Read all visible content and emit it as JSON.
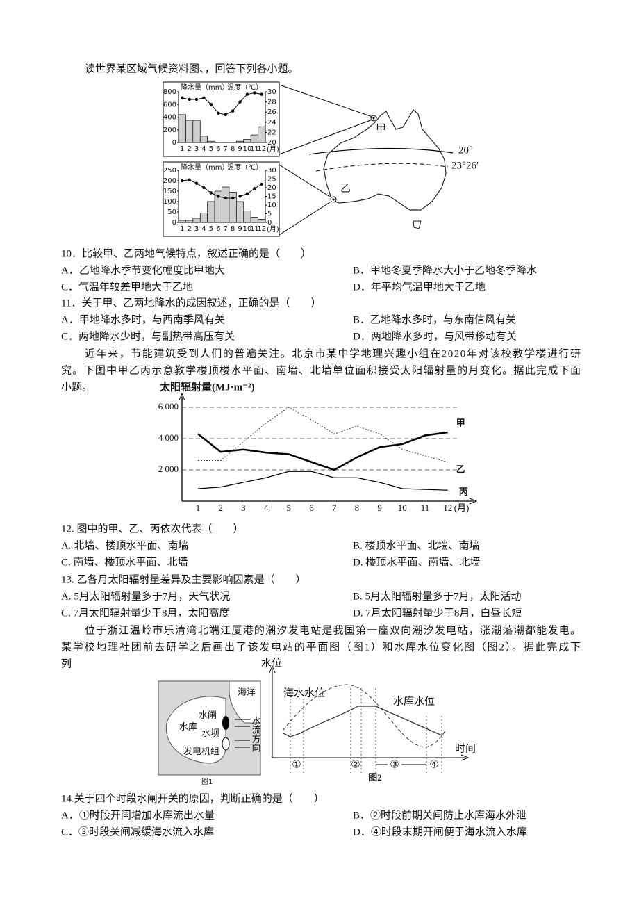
{
  "intro": "读世界某区域气候资料图、，回答下列各小题。",
  "climate_charts": [
    {
      "type": "bar-line",
      "precip_label": "降水量（mm）",
      "temp_label": "温度（℃）",
      "x_unit": "(月)",
      "categories": [
        1,
        2,
        3,
        4,
        5,
        6,
        7,
        8,
        9,
        10,
        11,
        12
      ],
      "precip": [
        440,
        350,
        350,
        100,
        20,
        5,
        5,
        5,
        20,
        50,
        120,
        250
      ],
      "temp": [
        28.8,
        28.5,
        28.5,
        28.8,
        27.5,
        25.8,
        25.5,
        26.2,
        28,
        29.5,
        29.8,
        29.5
      ],
      "ylim": [
        0,
        800
      ],
      "yticks": [
        0,
        200,
        400,
        600,
        800
      ],
      "y2lim": [
        20,
        30
      ],
      "y2ticks": [
        20,
        22,
        24,
        26,
        28,
        30
      ]
    },
    {
      "type": "bar-line",
      "precip_label": "降水量（mm）",
      "temp_label": "温度（℃）",
      "x_unit": "(月)",
      "categories": [
        1,
        2,
        3,
        4,
        5,
        6,
        7,
        8,
        9,
        10,
        11,
        12
      ],
      "precip": [
        10,
        10,
        20,
        45,
        100,
        150,
        170,
        145,
        100,
        55,
        25,
        15
      ],
      "temp": [
        24,
        24.5,
        22.5,
        20,
        17,
        15,
        14,
        14,
        15,
        16.5,
        19.5,
        22
      ],
      "ylim": [
        0,
        250
      ],
      "yticks": [
        0,
        50,
        100,
        150,
        200,
        250
      ],
      "y2lim": [
        0,
        30
      ],
      "y2ticks": [
        0,
        5,
        10,
        15,
        20,
        25,
        30
      ]
    }
  ],
  "map_labels": {
    "jia": "甲",
    "yi": "乙",
    "lat_20": "20°",
    "lat_tropic": "23°26′"
  },
  "questions": [
    {
      "stem": "10．比较甲、乙两地气候特点，叙述正确的是（　　）",
      "options": [
        "A．乙地降水季节变化幅度比甲地大",
        "B．甲地冬夏季降水大小于乙地冬季降水",
        "C．气温年较差甲地大于乙地",
        "D．年平均气温甲地大于乙地"
      ]
    },
    {
      "stem": "11．关于甲、乙两地降水的成因叙述，正确的是（　　）",
      "options": [
        "A．甲地降水多时，与西南季风有关",
        "B．乙地降水多时，与东南信风有关",
        "C．两地降水少时，与副热带高压有关",
        "D．两地降水多时，与风带移动有关"
      ]
    },
    {
      "stem": "12. 图中的甲、乙、丙依次代表（　　）",
      "options": [
        "A. 北墙、楼顶水平面、南墙",
        "B. 楼顶水平面、北墙、南墙",
        "C. 南墙、楼顶水平面、北墙",
        "D. 楼顶水平面、南墙、北墙"
      ]
    },
    {
      "stem": "13. 乙各月太阳辐射量差异及主要影响因素是（　　）",
      "options": [
        "A. 5月太阳辐射量多于7月，天气状况",
        "B. 5月太阳辐射量多于7月，太阳活动",
        "C. 7月太阳辐射量少于8月，太阳高度",
        "D. 7月太阳辐射量少于8月，白昼长短"
      ]
    },
    {
      "stem": "14.关于四个时段水闸开关的原因，判断正确的是（　　）",
      "options": [
        "A．①时段开闸增加水库流出水量",
        "B．②时段前期关闸防止水库海水外泄",
        "C．③时段关闸减缓海水流入水库",
        "D．④时段末期开闸便于海水流入水库"
      ]
    }
  ],
  "passage_2": [
    "近年来，节能建筑受到人们的普遍关注。北京市某中学地理兴趣小组在2020年对该校教学楼进行研",
    "究。下图中甲乙丙示意教学楼顶楼水平面、南墙、北墙单位面积接受太阳辐射量的月变化。据此完成下面",
    "小题。"
  ],
  "radiation_chart": {
    "type": "line",
    "y_label": "太阳辐射量(MJ·m⁻²)",
    "x_unit": "(月)",
    "categories": [
      1,
      2,
      3,
      4,
      5,
      6,
      7,
      8,
      9,
      10,
      11,
      12
    ],
    "ylim": [
      0,
      6800
    ],
    "yticks": [
      {
        "value": 2000,
        "label": "2 000"
      },
      {
        "value": 4000,
        "label": "4 000"
      },
      {
        "value": 6000,
        "label": "6 000"
      }
    ],
    "series": [
      {
        "name": "甲",
        "style": "thick",
        "values": [
          4300,
          3150,
          3300,
          3100,
          3000,
          2500,
          2000,
          2800,
          3450,
          3650,
          4200,
          4400
        ]
      },
      {
        "name": "乙",
        "style": "dotted",
        "values": [
          2600,
          2600,
          3800,
          5000,
          6000,
          5200,
          4300,
          4800,
          4300,
          3300,
          2900,
          2500
        ]
      },
      {
        "name": "丙",
        "style": "thin",
        "values": [
          800,
          900,
          1200,
          1500,
          1900,
          1900,
          1500,
          1500,
          1200,
          800,
          750,
          700
        ]
      }
    ]
  },
  "passage_3": [
    "位于浙江温岭市乐清湾北端江厦港的潮汐发电站是我国第一座双向潮汐发电站，涨潮落潮都能发电。",
    "某学校地理社团前去研学之后画出了该发电站的平面图（图1）和水库水位变化图（图2）。据此完成下",
    "列"
  ],
  "tide_figure": {
    "fig1": {
      "sea": "海洋",
      "sluice": "水闸",
      "reservoir": "水库",
      "dam": "水坝",
      "generator": "发电机组",
      "flow": "水流方向",
      "caption": "图1"
    },
    "fig2": {
      "y_label": "水位",
      "sea_level": "海水水位",
      "reservoir_level": "水库水位",
      "x_label": "时间",
      "p1": "①",
      "p2": "②",
      "p3": "③",
      "p4": "④",
      "caption": "图2"
    }
  }
}
